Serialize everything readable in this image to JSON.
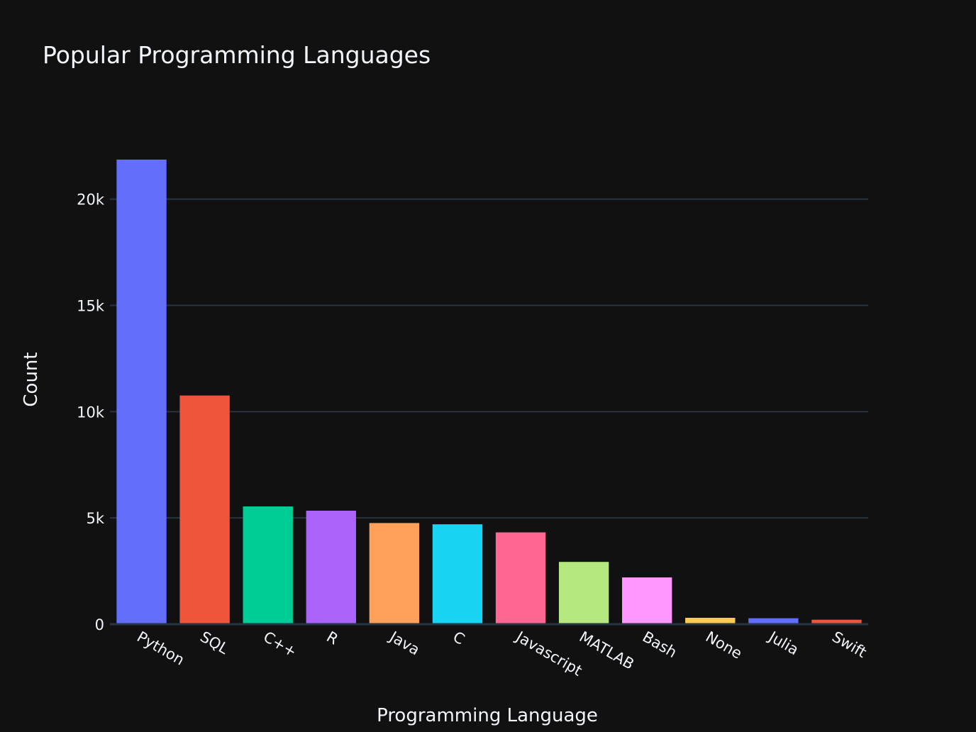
{
  "chart_data": {
    "type": "bar",
    "title": "Popular Programming Languages",
    "xlabel": "Programming Language",
    "ylabel": "Count",
    "categories": [
      "Python",
      "SQL",
      "C++",
      "R",
      "Java",
      "C",
      "Javascript",
      "MATLAB",
      "Bash",
      "None",
      "Julia",
      "Swift"
    ],
    "values": [
      21860,
      10760,
      5540,
      5340,
      4760,
      4700,
      4320,
      2930,
      2200,
      300,
      280,
      210
    ],
    "colors": [
      "#636efa",
      "#EF553B",
      "#00cc96",
      "#ab63fa",
      "#FFA15A",
      "#19d3f3",
      "#FF6692",
      "#B6E880",
      "#FF97FF",
      "#FECB52",
      "#636efa",
      "#EF553B"
    ],
    "ylim": [
      0,
      21860
    ],
    "yticks": [
      0,
      5000,
      10000,
      15000,
      20000
    ],
    "ytick_labels": [
      "0",
      "5k",
      "10k",
      "15k",
      "20k"
    ],
    "grid": true,
    "background": "#111111",
    "grid_color": "#283442",
    "text_color": "#f2f5fa"
  }
}
